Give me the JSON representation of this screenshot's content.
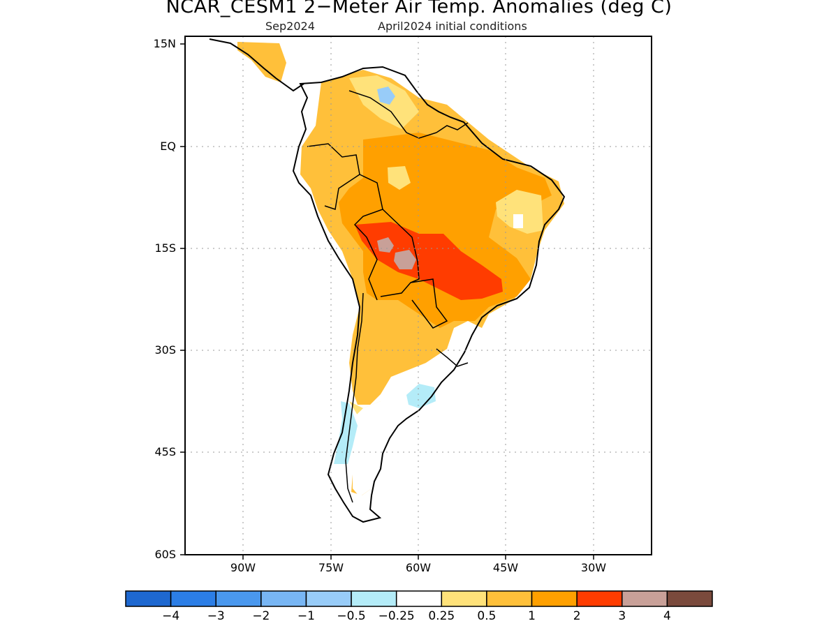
{
  "title": "NCAR_CESM1 2−Meter Air Temp. Anomalies (deg C)",
  "subtitle_left": "Sep2024",
  "subtitle_right": "April2024 initial conditions",
  "lat_labels": [
    "15N",
    "EQ",
    "15S",
    "30S",
    "45S",
    "60S"
  ],
  "lon_labels": [
    "90W",
    "75W",
    "60W",
    "45W",
    "30W"
  ],
  "colorbar": {
    "colors": [
      "#1e68d0",
      "#2c7ee6",
      "#4a98ee",
      "#78b6f4",
      "#98ccf8",
      "#b4ecf8",
      "#ffffff",
      "#ffe27a",
      "#ffc03a",
      "#ffa000",
      "#ff3c00",
      "#c8a098",
      "#7a4a3c"
    ],
    "labels": [
      "−4",
      "−3",
      "−2",
      "−1",
      "−0.5",
      "−0.25",
      "0.25",
      "0.5",
      "1",
      "2",
      "3",
      "4"
    ]
  }
}
